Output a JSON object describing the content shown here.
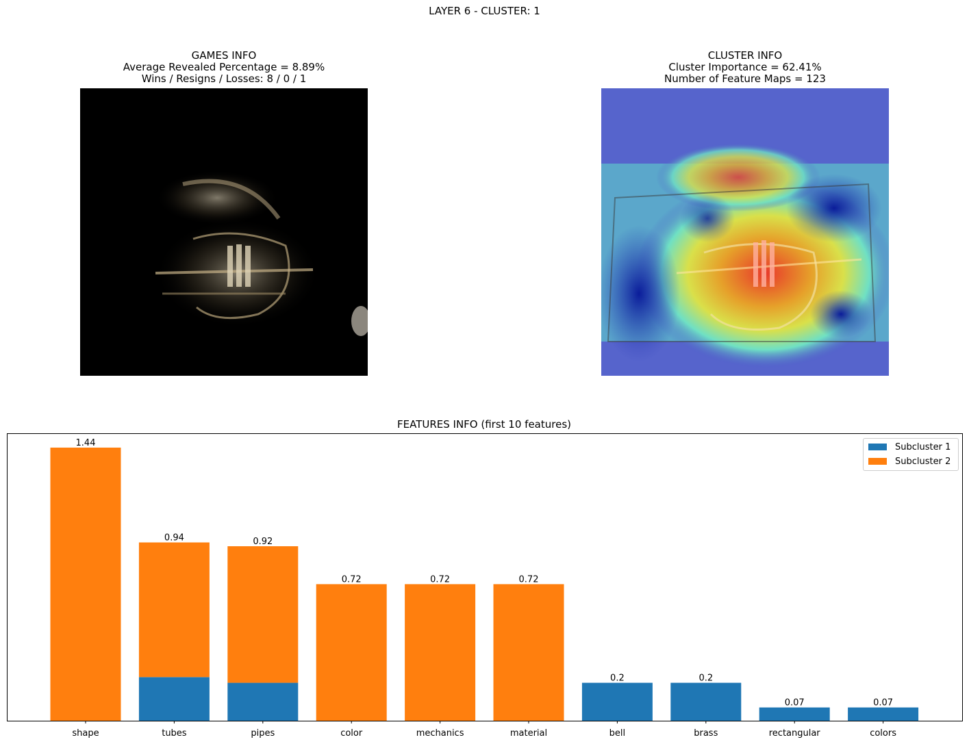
{
  "figure": {
    "suptitle": "LAYER 6 - CLUSTER: 1"
  },
  "games_info": {
    "title_lines": [
      "GAMES INFO",
      "Average Revealed Percentage = 8.89%",
      "Wins / Resigns / Losses: 8 / 0 / 1"
    ]
  },
  "cluster_info": {
    "title_lines": [
      "CLUSTER INFO",
      "Cluster Importance = 62.41%",
      "Number of Feature Maps = 123"
    ]
  },
  "colors": {
    "subcluster1": "#1f77b4",
    "subcluster2": "#ff7f0e"
  },
  "chart_data": {
    "type": "bar",
    "stacked": true,
    "title": "FEATURES INFO (first 10 features)",
    "categories": [
      "shape",
      "tubes",
      "pipes",
      "color",
      "mechanics",
      "material",
      "bell",
      "brass",
      "rectangular",
      "colors"
    ],
    "series": [
      {
        "name": "Subcluster 1",
        "values": [
          0,
          0.23,
          0.2,
          0,
          0,
          0,
          0.2,
          0.2,
          0.07,
          0.07
        ]
      },
      {
        "name": "Subcluster 2",
        "values": [
          1.44,
          0.71,
          0.72,
          0.72,
          0.72,
          0.72,
          0,
          0,
          0,
          0
        ]
      }
    ],
    "totals_labels": [
      "1.44",
      "0.94",
      "0.92",
      "0.72",
      "0.72",
      "0.72",
      "0.2",
      "0.2",
      "0.07",
      "0.07"
    ],
    "ylim": [
      0,
      1.512
    ],
    "grid": false,
    "yticks_visible": false,
    "legend_position": "top-right"
  }
}
